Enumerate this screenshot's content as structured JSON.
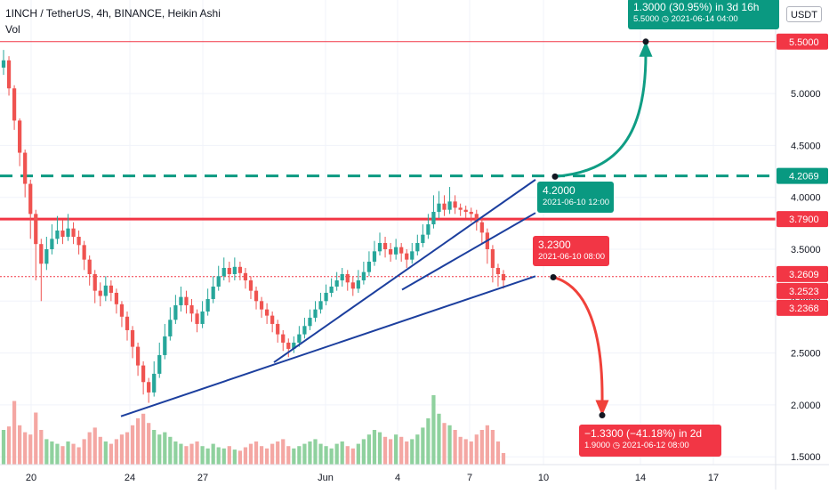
{
  "header": {
    "title": "1INCH / TetherUS, 4h, BINANCE, Heikin Ashi",
    "indicator": "Vol",
    "currency_button": "USDT"
  },
  "colors": {
    "up": "#26a69a",
    "down": "#ef5350",
    "vol_up": "#8fd19e",
    "vol_down": "#f4a7a3",
    "trendline": "#1c3f9e",
    "hline_red": "#f23645",
    "dash_teal": "#089981",
    "arrow_teal": "#0f9d84",
    "arrow_red": "#f0413a",
    "axis_text": "#131722"
  },
  "annotations": {
    "target_up": {
      "line1": "1.3000 (30.95%) in 3d 16h",
      "line2": "5.5000 ◷ 2021-06-14  04:00"
    },
    "entry": {
      "line1": "4.2000",
      "line2": "2021-06-10 12:00"
    },
    "stop": {
      "line1": "3.2300",
      "line2": "2021-06-10 08:00"
    },
    "target_down": {
      "line1": "−1.3300 (−41.18%) in 2d",
      "line2": "1.9000 ◷ 2021-06-12  08:00"
    }
  },
  "chart_data": {
    "type": "candlestick",
    "symbol": "1INCH / TetherUS",
    "interval": "4h",
    "exchange": "BINANCE",
    "style": "Heikin Ashi",
    "indicator": "Vol",
    "y_axis": {
      "position": "right",
      "ticks": [
        "1.5000",
        "2.0000",
        "2.5000",
        "3.0000",
        "3.5000",
        "4.0000",
        "4.5000",
        "5.0000"
      ],
      "ylim": [
        1.45,
        5.95
      ]
    },
    "x_axis": {
      "ticks": [
        "20",
        "24",
        "27",
        "Jun",
        "4",
        "7",
        "10",
        "14",
        "17"
      ]
    },
    "price_labels": [
      {
        "text": "5.5000",
        "value": 5.5,
        "color": "#f23645"
      },
      {
        "text": "4.2069",
        "value": 4.2069,
        "color": "#089981"
      },
      {
        "text": "3.7900",
        "value": 3.79,
        "color": "#f23645"
      },
      {
        "text": "3.2609",
        "value": 3.2609,
        "color": "#f23645"
      },
      {
        "text": "3.2523",
        "value": 3.2523,
        "color": "#f23645"
      },
      {
        "text": "3.2368",
        "value": 3.2368,
        "color": "#f23645"
      }
    ],
    "horizontal_lines": [
      {
        "value": 5.5,
        "style": "solid",
        "color": "#f23645"
      },
      {
        "value": 4.2069,
        "style": "dashed",
        "color": "#089981"
      },
      {
        "value": 3.79,
        "style": "solid-thick",
        "color": "#f23645"
      },
      {
        "value": 3.2368,
        "style": "dotted",
        "color": "#f23645"
      }
    ],
    "trendlines": [
      {
        "from": [
          136,
          1.89
        ],
        "to": [
          602,
          3.24
        ]
      },
      {
        "from": [
          308,
          2.41
        ],
        "to": [
          602,
          4.17
        ]
      },
      {
        "from": [
          452,
          3.11
        ],
        "to": [
          602,
          3.85
        ]
      }
    ],
    "candles": [
      [
        5.25,
        5.32,
        5.42,
        5.18
      ],
      [
        5.32,
        5.05,
        5.36,
        4.98
      ],
      [
        5.05,
        4.74,
        5.08,
        4.65
      ],
      [
        4.74,
        4.43,
        4.76,
        4.3
      ],
      [
        4.43,
        4.13,
        4.46,
        4.0
      ],
      [
        4.13,
        3.84,
        4.17,
        3.6
      ],
      [
        3.84,
        3.55,
        3.88,
        3.2
      ],
      [
        3.55,
        3.36,
        3.6,
        3.0
      ],
      [
        3.36,
        3.5,
        3.62,
        3.3
      ],
      [
        3.5,
        3.6,
        3.74,
        3.45
      ],
      [
        3.6,
        3.68,
        3.82,
        3.55
      ],
      [
        3.68,
        3.62,
        3.78,
        3.55
      ],
      [
        3.62,
        3.7,
        3.84,
        3.58
      ],
      [
        3.7,
        3.62,
        3.76,
        3.55
      ],
      [
        3.62,
        3.54,
        3.68,
        3.45
      ],
      [
        3.54,
        3.4,
        3.58,
        3.3
      ],
      [
        3.4,
        3.26,
        3.44,
        3.15
      ],
      [
        3.26,
        3.1,
        3.3,
        2.98
      ],
      [
        3.1,
        3.05,
        3.18,
        2.95
      ],
      [
        3.05,
        3.15,
        3.24,
        3.0
      ],
      [
        3.15,
        3.08,
        3.2,
        3.0
      ],
      [
        3.08,
        2.97,
        3.12,
        2.88
      ],
      [
        2.97,
        2.85,
        3.0,
        2.75
      ],
      [
        2.85,
        2.72,
        2.9,
        2.62
      ],
      [
        2.72,
        2.56,
        2.76,
        2.45
      ],
      [
        2.56,
        2.38,
        2.6,
        2.28
      ],
      [
        2.38,
        2.22,
        2.42,
        2.1
      ],
      [
        2.22,
        2.12,
        2.26,
        2.02
      ],
      [
        2.12,
        2.3,
        2.42,
        2.08
      ],
      [
        2.3,
        2.48,
        2.6,
        2.26
      ],
      [
        2.48,
        2.66,
        2.78,
        2.44
      ],
      [
        2.66,
        2.82,
        2.94,
        2.62
      ],
      [
        2.82,
        2.96,
        3.06,
        2.78
      ],
      [
        2.96,
        3.04,
        3.14,
        2.9
      ],
      [
        3.04,
        2.96,
        3.1,
        2.88
      ],
      [
        2.96,
        2.88,
        3.02,
        2.8
      ],
      [
        2.88,
        2.78,
        2.92,
        2.7
      ],
      [
        2.78,
        2.9,
        3.0,
        2.74
      ],
      [
        2.9,
        3.02,
        3.12,
        2.86
      ],
      [
        3.02,
        3.14,
        3.24,
        2.98
      ],
      [
        3.14,
        3.24,
        3.34,
        3.1
      ],
      [
        3.24,
        3.32,
        3.42,
        3.2
      ],
      [
        3.32,
        3.26,
        3.38,
        3.18
      ],
      [
        3.26,
        3.33,
        3.42,
        3.2
      ],
      [
        3.33,
        3.27,
        3.38,
        3.2
      ],
      [
        3.27,
        3.2,
        3.32,
        3.12
      ],
      [
        3.2,
        3.1,
        3.24,
        3.02
      ],
      [
        3.1,
        3.0,
        3.14,
        2.92
      ],
      [
        3.0,
        2.92,
        3.04,
        2.84
      ],
      [
        2.92,
        2.86,
        2.98,
        2.78
      ],
      [
        2.86,
        2.78,
        2.9,
        2.7
      ],
      [
        2.78,
        2.68,
        2.82,
        2.6
      ],
      [
        2.68,
        2.6,
        2.72,
        2.52
      ],
      [
        2.6,
        2.54,
        2.64,
        2.46
      ],
      [
        2.54,
        2.6,
        2.66,
        2.5
      ],
      [
        2.6,
        2.68,
        2.76,
        2.56
      ],
      [
        2.68,
        2.76,
        2.84,
        2.64
      ],
      [
        2.76,
        2.84,
        2.92,
        2.72
      ],
      [
        2.84,
        2.92,
        3.0,
        2.8
      ],
      [
        2.92,
        3.0,
        3.08,
        2.88
      ],
      [
        3.0,
        3.08,
        3.16,
        2.96
      ],
      [
        3.08,
        3.14,
        3.22,
        3.04
      ],
      [
        3.14,
        3.2,
        3.28,
        3.1
      ],
      [
        3.2,
        3.26,
        3.32,
        3.14
      ],
      [
        3.26,
        3.18,
        3.3,
        3.1
      ],
      [
        3.18,
        3.12,
        3.24,
        3.05
      ],
      [
        3.12,
        3.2,
        3.3,
        3.08
      ],
      [
        3.2,
        3.28,
        3.38,
        3.16
      ],
      [
        3.28,
        3.38,
        3.48,
        3.24
      ],
      [
        3.38,
        3.48,
        3.58,
        3.34
      ],
      [
        3.48,
        3.56,
        3.66,
        3.44
      ],
      [
        3.56,
        3.5,
        3.62,
        3.42
      ],
      [
        3.5,
        3.45,
        3.56,
        3.38
      ],
      [
        3.45,
        3.52,
        3.6,
        3.4
      ],
      [
        3.52,
        3.46,
        3.56,
        3.38
      ],
      [
        3.46,
        3.4,
        3.5,
        3.32
      ],
      [
        3.4,
        3.48,
        3.56,
        3.36
      ],
      [
        3.48,
        3.56,
        3.64,
        3.44
      ],
      [
        3.56,
        3.64,
        3.74,
        3.52
      ],
      [
        3.64,
        3.74,
        3.84,
        3.6
      ],
      [
        3.74,
        3.86,
        4.02,
        3.7
      ],
      [
        3.86,
        3.94,
        4.06,
        3.8
      ],
      [
        3.94,
        3.88,
        4.02,
        3.82
      ],
      [
        3.88,
        3.96,
        4.1,
        3.84
      ],
      [
        3.96,
        3.9,
        4.02,
        3.84
      ],
      [
        3.9,
        3.88,
        3.94,
        3.82
      ],
      [
        3.88,
        3.86,
        3.92,
        3.8
      ],
      [
        3.86,
        3.84,
        3.9,
        3.76
      ],
      [
        3.84,
        3.76,
        3.88,
        3.68
      ],
      [
        3.76,
        3.66,
        3.8,
        3.56
      ],
      [
        3.66,
        3.5,
        3.7,
        3.36
      ],
      [
        3.5,
        3.32,
        3.54,
        3.18
      ],
      [
        3.32,
        3.26,
        3.36,
        3.14
      ],
      [
        3.26,
        3.2,
        3.3,
        3.12
      ]
    ],
    "volume": [
      0.3,
      0.33,
      0.55,
      0.34,
      0.28,
      0.26,
      0.45,
      0.3,
      0.22,
      0.2,
      0.18,
      0.16,
      0.2,
      0.18,
      0.15,
      0.22,
      0.28,
      0.32,
      0.24,
      0.2,
      0.18,
      0.22,
      0.26,
      0.28,
      0.34,
      0.4,
      0.44,
      0.36,
      0.3,
      0.26,
      0.28,
      0.24,
      0.2,
      0.18,
      0.16,
      0.18,
      0.2,
      0.16,
      0.14,
      0.18,
      0.15,
      0.14,
      0.16,
      0.13,
      0.12,
      0.15,
      0.18,
      0.2,
      0.16,
      0.14,
      0.18,
      0.2,
      0.22,
      0.16,
      0.14,
      0.16,
      0.18,
      0.2,
      0.22,
      0.18,
      0.16,
      0.14,
      0.18,
      0.2,
      0.16,
      0.14,
      0.18,
      0.22,
      0.26,
      0.3,
      0.28,
      0.24,
      0.22,
      0.26,
      0.24,
      0.2,
      0.22,
      0.26,
      0.32,
      0.4,
      0.6,
      0.44,
      0.36,
      0.34,
      0.3,
      0.24,
      0.22,
      0.2,
      0.26,
      0.3,
      0.34,
      0.3,
      0.2,
      0.1
    ]
  }
}
